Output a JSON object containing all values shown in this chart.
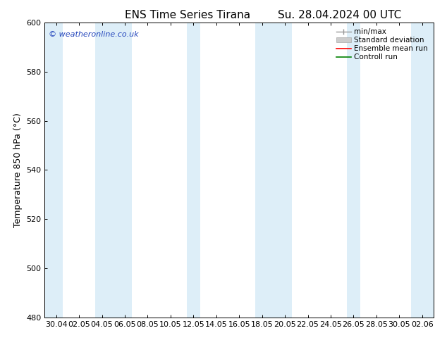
{
  "title_left": "ENS Time Series Tirana",
  "title_right": "Su. 28.04.2024 00 UTC",
  "ylabel": "Temperature 850 hPa (°C)",
  "ylim": [
    480,
    600
  ],
  "yticks": [
    480,
    500,
    520,
    540,
    560,
    580,
    600
  ],
  "xtick_labels": [
    "30.04",
    "02.05",
    "04.05",
    "06.05",
    "08.05",
    "10.05",
    "12.05",
    "14.05",
    "16.05",
    "18.05",
    "20.05",
    "22.05",
    "24.05",
    "26.05",
    "28.05",
    "30.05",
    "02.06"
  ],
  "background_color": "#ffffff",
  "plot_bg_color": "#ffffff",
  "shaded_band_color": "#ddeef8",
  "watermark_text": "© weatheronline.co.uk",
  "watermark_color": "#2244bb",
  "legend_labels": [
    "min/max",
    "Standard deviation",
    "Ensemble mean run",
    "Controll run"
  ],
  "shaded_ranges": [
    [
      -0.5,
      0.3
    ],
    [
      1.7,
      3.3
    ],
    [
      5.7,
      6.3
    ],
    [
      8.7,
      10.3
    ],
    [
      12.7,
      13.3
    ],
    [
      15.5,
      16.5
    ]
  ],
  "title_fontsize": 11,
  "axis_label_fontsize": 9,
  "tick_fontsize": 8,
  "legend_fontsize": 7.5
}
